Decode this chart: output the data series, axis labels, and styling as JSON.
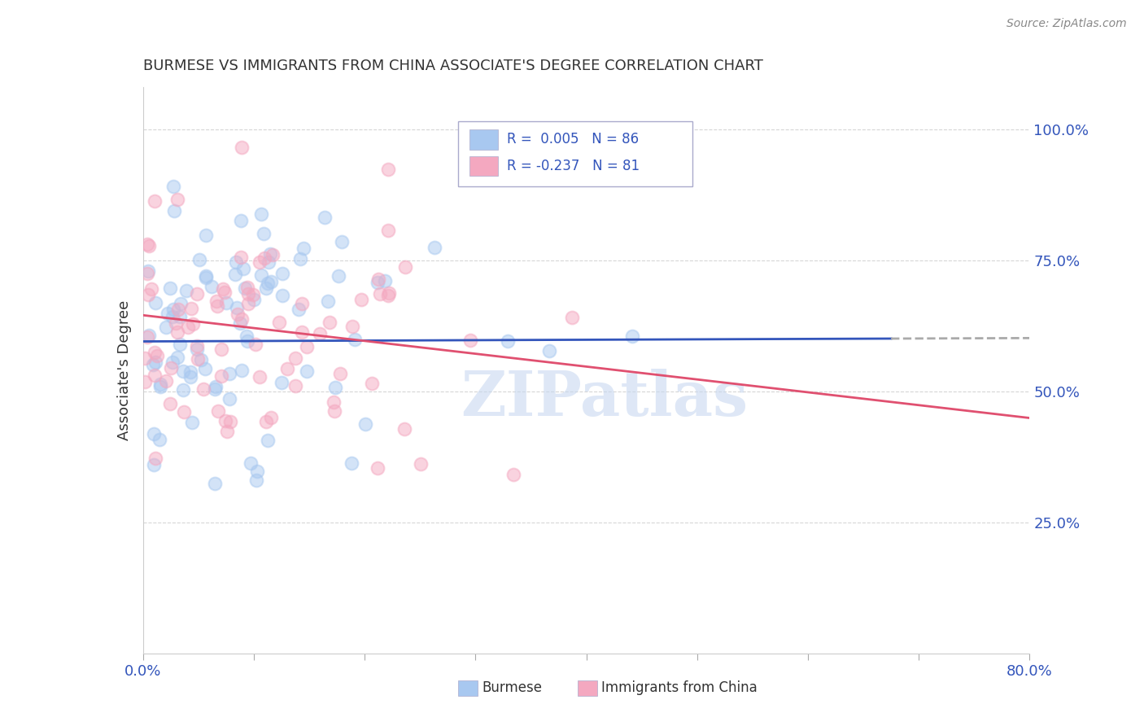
{
  "title": "BURMESE VS IMMIGRANTS FROM CHINA ASSOCIATE'S DEGREE CORRELATION CHART",
  "source": "Source: ZipAtlas.com",
  "ylabel": "Associate's Degree",
  "ytick_labels": [
    "25.0%",
    "50.0%",
    "75.0%",
    "100.0%"
  ],
  "ytick_values": [
    0.25,
    0.5,
    0.75,
    1.0
  ],
  "xlim": [
    0.0,
    0.8
  ],
  "ylim": [
    0.0,
    1.08
  ],
  "burmese_color": "#a8c8f0",
  "china_color": "#f4a8c0",
  "burmese_line_color": "#3355bb",
  "china_line_color": "#e05070",
  "burmese_R": 0.005,
  "burmese_N": 86,
  "china_R": -0.237,
  "china_N": 81,
  "burmese_intercept": 0.595,
  "burmese_slope": 0.008,
  "china_intercept": 0.645,
  "china_slope": -0.245,
  "seed": 42,
  "background_color": "#ffffff",
  "grid_color": "#cccccc",
  "title_color": "#333333",
  "axis_label_color": "#3355bb",
  "watermark": "ZIPatlas",
  "watermark_color": "#c8d8f0",
  "marker_size": 130,
  "marker_alpha": 0.5
}
